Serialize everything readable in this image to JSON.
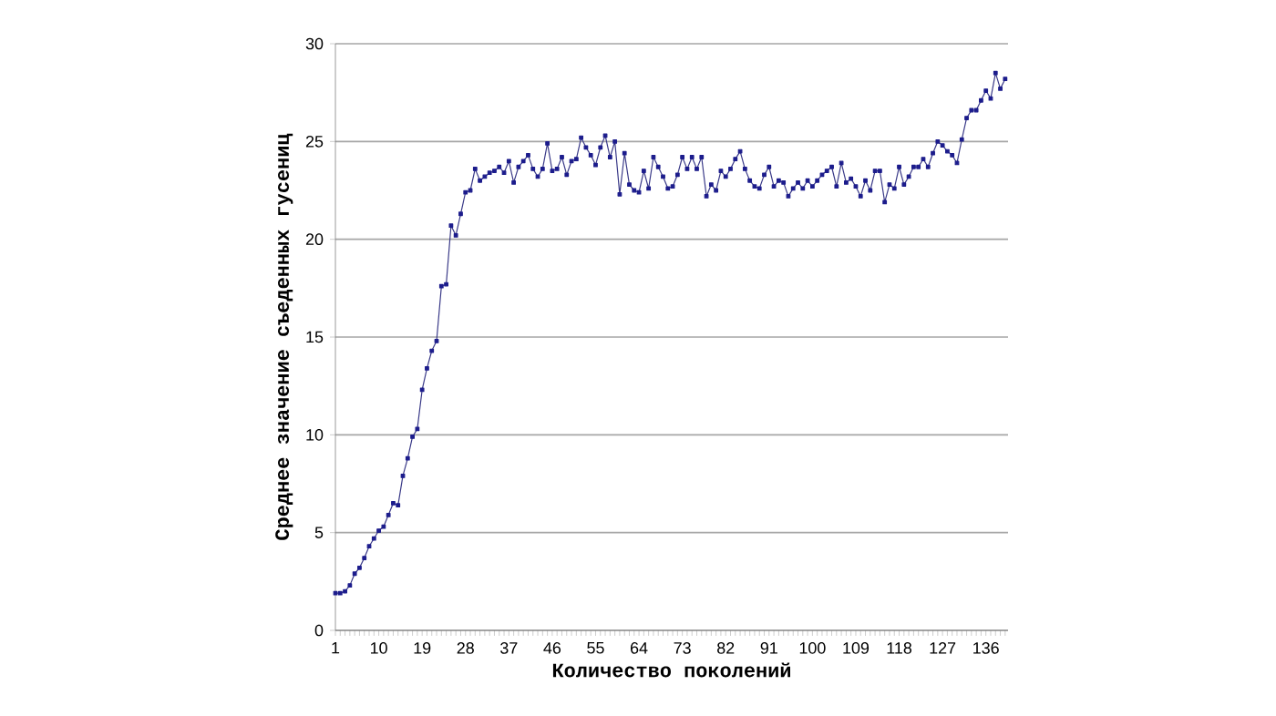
{
  "chart_data": {
    "type": "line",
    "xlabel": "Количество поколений",
    "ylabel": "Среднее значение съеденных гусениц",
    "categories": [
      "1",
      null,
      null,
      null,
      null,
      null,
      null,
      null,
      null,
      "10",
      null,
      null,
      null,
      null,
      null,
      null,
      null,
      null,
      "19",
      null,
      null,
      null,
      null,
      null,
      null,
      null,
      null,
      "28",
      null,
      null,
      null,
      null,
      null,
      null,
      null,
      null,
      "37",
      null,
      null,
      null,
      null,
      null,
      null,
      null,
      null,
      "46",
      null,
      null,
      null,
      null,
      null,
      null,
      null,
      null,
      "55",
      null,
      null,
      null,
      null,
      null,
      null,
      null,
      null,
      "64",
      null,
      null,
      null,
      null,
      null,
      null,
      null,
      null,
      "73",
      null,
      null,
      null,
      null,
      null,
      null,
      null,
      null,
      "82",
      null,
      null,
      null,
      null,
      null,
      null,
      null,
      null,
      "91",
      null,
      null,
      null,
      null,
      null,
      null,
      null,
      null,
      "100",
      null,
      null,
      null,
      null,
      null,
      null,
      null,
      null,
      "109",
      null,
      null,
      null,
      null,
      null,
      null,
      null,
      null,
      "118",
      null,
      null,
      null,
      null,
      null,
      null,
      null,
      null,
      "127",
      null,
      null,
      null,
      null,
      null,
      null,
      null,
      null,
      "136",
      null,
      null,
      null,
      null
    ],
    "ylim": [
      0,
      30
    ],
    "yticks": [
      0,
      5,
      10,
      15,
      20,
      25,
      30
    ],
    "grid": "y",
    "marker": "square",
    "line_style": "solid",
    "series": [
      {
        "color": "#1c1c8c",
        "values": [
          1.9,
          1.9,
          2.0,
          2.3,
          2.9,
          3.2,
          3.7,
          4.3,
          4.7,
          5.1,
          5.3,
          5.9,
          6.5,
          6.4,
          7.9,
          8.8,
          9.9,
          10.3,
          12.3,
          13.4,
          14.3,
          14.8,
          17.6,
          17.7,
          20.7,
          20.2,
          21.3,
          22.4,
          22.5,
          23.6,
          23.0,
          23.2,
          23.4,
          23.5,
          23.7,
          23.4,
          24.0,
          22.9,
          23.7,
          24.0,
          24.3,
          23.6,
          23.2,
          23.6,
          24.9,
          23.5,
          23.6,
          24.2,
          23.3,
          24.0,
          24.1,
          25.2,
          24.7,
          24.3,
          23.8,
          24.7,
          25.3,
          24.2,
          25.0,
          22.3,
          24.4,
          22.8,
          22.5,
          22.4,
          23.5,
          22.6,
          24.2,
          23.7,
          23.2,
          22.6,
          22.7,
          23.3,
          24.2,
          23.6,
          24.2,
          23.6,
          24.2,
          22.2,
          22.8,
          22.5,
          23.5,
          23.2,
          23.6,
          24.1,
          24.5,
          23.6,
          23.0,
          22.7,
          22.6,
          23.3,
          23.7,
          22.7,
          23.0,
          22.9,
          22.2,
          22.6,
          22.9,
          22.6,
          23.0,
          22.7,
          23.0,
          23.3,
          23.5,
          23.7,
          22.7,
          23.9,
          22.9,
          23.1,
          22.7,
          22.2,
          23.0,
          22.5,
          23.5,
          23.5,
          21.9,
          22.8,
          22.6,
          23.7,
          22.8,
          23.2,
          23.7,
          23.7,
          24.1,
          23.7,
          24.4,
          25.0,
          24.8,
          24.5,
          24.3,
          23.9,
          25.1,
          26.2,
          26.6,
          26.6,
          27.1,
          27.6,
          27.2,
          28.5,
          27.7,
          28.2
        ]
      }
    ]
  }
}
